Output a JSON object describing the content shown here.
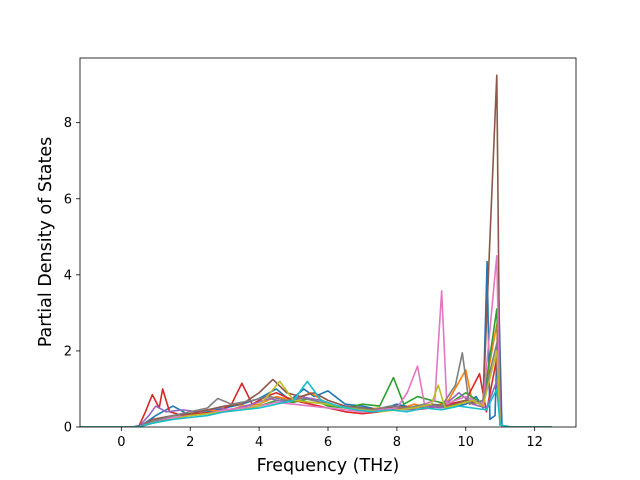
{
  "chart_data": {
    "type": "line",
    "title": "",
    "xlabel": "Frequency (THz)",
    "ylabel": "Partial Density of States",
    "xlim": [
      -1.2,
      13.2
    ],
    "ylim": [
      0,
      9.7
    ],
    "x_ticks": [
      0,
      2,
      4,
      6,
      8,
      10,
      12
    ],
    "y_ticks": [
      0,
      2,
      4,
      6,
      8
    ],
    "x_tick_labels": [
      "0",
      "2",
      "4",
      "6",
      "8",
      "10",
      "12"
    ],
    "y_tick_labels": [
      "0",
      "2",
      "4",
      "6",
      "8"
    ],
    "grid": false,
    "legend": "none",
    "x_range_of_curves": [
      -1.2,
      12.5
    ],
    "series": [
      {
        "color": "#1f77b4",
        "values": [
          [
            -1.2,
            0
          ],
          [
            0.3,
            0
          ],
          [
            0.6,
            0.05
          ],
          [
            1.0,
            0.3
          ],
          [
            1.5,
            0.55
          ],
          [
            2.0,
            0.3
          ],
          [
            2.5,
            0.4
          ],
          [
            3.0,
            0.5
          ],
          [
            3.5,
            0.6
          ],
          [
            4.0,
            0.75
          ],
          [
            4.5,
            1.0
          ],
          [
            4.9,
            0.7
          ],
          [
            5.3,
            1.0
          ],
          [
            5.6,
            0.8
          ],
          [
            6.0,
            0.95
          ],
          [
            6.5,
            0.6
          ],
          [
            7.0,
            0.55
          ],
          [
            7.5,
            0.45
          ],
          [
            8.0,
            0.6
          ],
          [
            8.5,
            0.5
          ],
          [
            9.0,
            0.55
          ],
          [
            9.5,
            0.5
          ],
          [
            10.0,
            0.6
          ],
          [
            10.3,
            0.8
          ],
          [
            10.5,
            0.5
          ],
          [
            10.62,
            4.35
          ],
          [
            10.7,
            0.2
          ],
          [
            10.85,
            0.3
          ],
          [
            10.95,
            3.6
          ],
          [
            11.05,
            0.05
          ],
          [
            11.3,
            0
          ],
          [
            12.5,
            0
          ]
        ]
      },
      {
        "color": "#ff7f0e",
        "values": [
          [
            -1.2,
            0
          ],
          [
            0.5,
            0
          ],
          [
            0.9,
            0.15
          ],
          [
            1.5,
            0.3
          ],
          [
            2.0,
            0.35
          ],
          [
            2.5,
            0.45
          ],
          [
            3.0,
            0.4
          ],
          [
            3.5,
            0.55
          ],
          [
            4.0,
            0.6
          ],
          [
            4.5,
            0.8
          ],
          [
            5.0,
            0.7
          ],
          [
            5.5,
            0.9
          ],
          [
            6.0,
            0.6
          ],
          [
            6.5,
            0.5
          ],
          [
            7.0,
            0.45
          ],
          [
            7.5,
            0.5
          ],
          [
            8.0,
            0.45
          ],
          [
            8.5,
            0.6
          ],
          [
            9.0,
            0.5
          ],
          [
            9.5,
            0.7
          ],
          [
            10.0,
            1.5
          ],
          [
            10.2,
            0.6
          ],
          [
            10.5,
            0.7
          ],
          [
            10.9,
            2.7
          ],
          [
            11.0,
            0.05
          ],
          [
            11.3,
            0
          ],
          [
            12.5,
            0
          ]
        ]
      },
      {
        "color": "#2ca02c",
        "values": [
          [
            -1.2,
            0
          ],
          [
            0.5,
            0
          ],
          [
            0.9,
            0.1
          ],
          [
            1.5,
            0.25
          ],
          [
            2.0,
            0.3
          ],
          [
            2.5,
            0.35
          ],
          [
            3.0,
            0.45
          ],
          [
            3.5,
            0.5
          ],
          [
            4.0,
            0.55
          ],
          [
            4.5,
            0.7
          ],
          [
            5.0,
            0.65
          ],
          [
            5.5,
            0.75
          ],
          [
            6.0,
            0.55
          ],
          [
            6.5,
            0.5
          ],
          [
            7.0,
            0.6
          ],
          [
            7.5,
            0.55
          ],
          [
            7.9,
            1.3
          ],
          [
            8.2,
            0.6
          ],
          [
            8.6,
            0.8
          ],
          [
            9.0,
            0.7
          ],
          [
            9.5,
            0.6
          ],
          [
            10.0,
            0.9
          ],
          [
            10.5,
            0.6
          ],
          [
            10.9,
            3.1
          ],
          [
            11.0,
            0.05
          ],
          [
            11.3,
            0
          ],
          [
            12.5,
            0
          ]
        ]
      },
      {
        "color": "#d62728",
        "values": [
          [
            -1.2,
            0
          ],
          [
            0.5,
            0
          ],
          [
            0.7,
            0.4
          ],
          [
            0.9,
            0.85
          ],
          [
            1.1,
            0.5
          ],
          [
            1.2,
            1.0
          ],
          [
            1.4,
            0.4
          ],
          [
            1.8,
            0.3
          ],
          [
            2.2,
            0.35
          ],
          [
            2.8,
            0.4
          ],
          [
            3.2,
            0.6
          ],
          [
            3.5,
            1.15
          ],
          [
            3.8,
            0.6
          ],
          [
            4.2,
            0.8
          ],
          [
            4.5,
            0.9
          ],
          [
            5.0,
            0.7
          ],
          [
            5.5,
            0.6
          ],
          [
            6.0,
            0.5
          ],
          [
            6.5,
            0.4
          ],
          [
            7.0,
            0.35
          ],
          [
            7.5,
            0.4
          ],
          [
            8.0,
            0.5
          ],
          [
            8.5,
            0.45
          ],
          [
            9.0,
            0.5
          ],
          [
            9.5,
            0.6
          ],
          [
            10.0,
            0.7
          ],
          [
            10.4,
            1.4
          ],
          [
            10.6,
            0.4
          ],
          [
            10.9,
            1.8
          ],
          [
            11.0,
            0.05
          ],
          [
            11.3,
            0
          ],
          [
            12.5,
            0
          ]
        ]
      },
      {
        "color": "#9467bd",
        "values": [
          [
            -1.2,
            0
          ],
          [
            0.5,
            0
          ],
          [
            0.8,
            0.3
          ],
          [
            1.0,
            0.55
          ],
          [
            1.3,
            0.4
          ],
          [
            1.8,
            0.45
          ],
          [
            2.2,
            0.4
          ],
          [
            2.8,
            0.5
          ],
          [
            3.2,
            0.45
          ],
          [
            3.8,
            0.6
          ],
          [
            4.3,
            0.75
          ],
          [
            4.8,
            0.65
          ],
          [
            5.2,
            0.8
          ],
          [
            5.8,
            0.7
          ],
          [
            6.3,
            0.55
          ],
          [
            6.8,
            0.45
          ],
          [
            7.3,
            0.4
          ],
          [
            7.8,
            0.5
          ],
          [
            8.3,
            0.45
          ],
          [
            8.8,
            0.55
          ],
          [
            9.3,
            0.5
          ],
          [
            9.8,
            0.9
          ],
          [
            10.2,
            0.6
          ],
          [
            10.6,
            0.5
          ],
          [
            10.9,
            1.2
          ],
          [
            11.0,
            0.05
          ],
          [
            11.3,
            0
          ],
          [
            12.5,
            0
          ]
        ]
      },
      {
        "color": "#8c564b",
        "values": [
          [
            -1.2,
            0
          ],
          [
            0.5,
            0
          ],
          [
            0.9,
            0.2
          ],
          [
            1.5,
            0.3
          ],
          [
            2.0,
            0.35
          ],
          [
            2.5,
            0.45
          ],
          [
            3.0,
            0.55
          ],
          [
            3.5,
            0.6
          ],
          [
            4.0,
            0.9
          ],
          [
            4.4,
            1.25
          ],
          [
            4.8,
            0.9
          ],
          [
            5.2,
            0.8
          ],
          [
            5.6,
            0.9
          ],
          [
            6.0,
            0.7
          ],
          [
            6.5,
            0.55
          ],
          [
            7.0,
            0.5
          ],
          [
            7.5,
            0.45
          ],
          [
            8.0,
            0.55
          ],
          [
            8.5,
            0.5
          ],
          [
            9.0,
            0.6
          ],
          [
            9.5,
            0.55
          ],
          [
            10.0,
            0.7
          ],
          [
            10.5,
            0.6
          ],
          [
            10.9,
            9.25
          ],
          [
            11.0,
            0.05
          ],
          [
            11.3,
            0
          ],
          [
            12.5,
            0
          ]
        ]
      },
      {
        "color": "#e377c2",
        "values": [
          [
            -1.2,
            0
          ],
          [
            0.5,
            0
          ],
          [
            0.9,
            0.15
          ],
          [
            1.5,
            0.25
          ],
          [
            2.0,
            0.3
          ],
          [
            2.5,
            0.35
          ],
          [
            3.0,
            0.45
          ],
          [
            3.5,
            0.5
          ],
          [
            4.0,
            0.55
          ],
          [
            4.5,
            0.65
          ],
          [
            5.0,
            0.6
          ],
          [
            5.5,
            0.55
          ],
          [
            6.0,
            0.5
          ],
          [
            6.5,
            0.45
          ],
          [
            7.0,
            0.4
          ],
          [
            7.5,
            0.45
          ],
          [
            8.0,
            0.5
          ],
          [
            8.3,
            0.9
          ],
          [
            8.6,
            1.6
          ],
          [
            8.8,
            0.6
          ],
          [
            9.1,
            0.7
          ],
          [
            9.3,
            3.58
          ],
          [
            9.45,
            0.6
          ],
          [
            9.7,
            0.7
          ],
          [
            10.0,
            0.8
          ],
          [
            10.5,
            0.6
          ],
          [
            10.9,
            4.5
          ],
          [
            11.0,
            0.05
          ],
          [
            11.3,
            0
          ],
          [
            12.5,
            0
          ]
        ]
      },
      {
        "color": "#7f7f7f",
        "values": [
          [
            -1.2,
            0
          ],
          [
            0.5,
            0
          ],
          [
            0.9,
            0.15
          ],
          [
            1.5,
            0.3
          ],
          [
            2.0,
            0.4
          ],
          [
            2.5,
            0.5
          ],
          [
            2.8,
            0.75
          ],
          [
            3.2,
            0.6
          ],
          [
            3.8,
            0.7
          ],
          [
            4.3,
            0.8
          ],
          [
            4.8,
            0.7
          ],
          [
            5.3,
            0.75
          ],
          [
            5.8,
            0.65
          ],
          [
            6.3,
            0.55
          ],
          [
            6.8,
            0.5
          ],
          [
            7.3,
            0.45
          ],
          [
            7.8,
            0.55
          ],
          [
            8.3,
            0.5
          ],
          [
            8.8,
            0.6
          ],
          [
            9.3,
            0.55
          ],
          [
            9.7,
            1.1
          ],
          [
            9.9,
            1.95
          ],
          [
            10.1,
            0.6
          ],
          [
            10.5,
            0.7
          ],
          [
            10.9,
            2.2
          ],
          [
            11.0,
            0.05
          ],
          [
            11.3,
            0
          ],
          [
            12.5,
            0
          ]
        ]
      },
      {
        "color": "#bcbd22",
        "values": [
          [
            -1.2,
            0
          ],
          [
            0.5,
            0
          ],
          [
            0.9,
            0.1
          ],
          [
            1.5,
            0.2
          ],
          [
            2.0,
            0.3
          ],
          [
            2.5,
            0.35
          ],
          [
            3.0,
            0.4
          ],
          [
            3.5,
            0.45
          ],
          [
            4.0,
            0.55
          ],
          [
            4.6,
            1.2
          ],
          [
            5.0,
            0.7
          ],
          [
            5.5,
            0.65
          ],
          [
            6.0,
            0.6
          ],
          [
            6.5,
            0.5
          ],
          [
            7.0,
            0.45
          ],
          [
            7.5,
            0.4
          ],
          [
            8.0,
            0.45
          ],
          [
            8.5,
            0.5
          ],
          [
            9.0,
            0.6
          ],
          [
            9.2,
            1.1
          ],
          [
            9.4,
            0.5
          ],
          [
            9.8,
            0.6
          ],
          [
            10.2,
            0.7
          ],
          [
            10.5,
            0.55
          ],
          [
            10.9,
            2.0
          ],
          [
            11.0,
            0.05
          ],
          [
            11.3,
            0
          ],
          [
            12.5,
            0
          ]
        ]
      },
      {
        "color": "#17becf",
        "values": [
          [
            -1.2,
            0
          ],
          [
            0.5,
            0
          ],
          [
            0.9,
            0.1
          ],
          [
            1.5,
            0.2
          ],
          [
            2.0,
            0.25
          ],
          [
            2.5,
            0.3
          ],
          [
            3.0,
            0.4
          ],
          [
            3.5,
            0.45
          ],
          [
            4.0,
            0.5
          ],
          [
            4.5,
            0.6
          ],
          [
            5.0,
            0.7
          ],
          [
            5.4,
            1.2
          ],
          [
            5.8,
            0.7
          ],
          [
            6.3,
            0.55
          ],
          [
            6.8,
            0.45
          ],
          [
            7.3,
            0.4
          ],
          [
            7.8,
            0.45
          ],
          [
            8.3,
            0.4
          ],
          [
            8.8,
            0.5
          ],
          [
            9.3,
            0.45
          ],
          [
            9.8,
            0.55
          ],
          [
            10.2,
            0.5
          ],
          [
            10.6,
            0.45
          ],
          [
            10.9,
            1.0
          ],
          [
            11.0,
            0.05
          ],
          [
            11.3,
            0
          ],
          [
            12.5,
            0
          ]
        ]
      }
    ]
  }
}
